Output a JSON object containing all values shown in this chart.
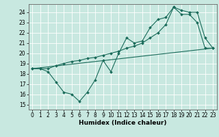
{
  "xlabel": "Humidex (Indice chaleur)",
  "background_color": "#c8e8e0",
  "grid_color": "#ffffff",
  "line_color": "#1a6b5a",
  "xlim": [
    -0.5,
    23.5
  ],
  "ylim": [
    14.5,
    24.8
  ],
  "xticks": [
    0,
    1,
    2,
    3,
    4,
    5,
    6,
    7,
    8,
    9,
    10,
    11,
    12,
    13,
    14,
    15,
    16,
    17,
    18,
    19,
    20,
    21,
    22,
    23
  ],
  "yticks": [
    15,
    16,
    17,
    18,
    19,
    20,
    21,
    22,
    23,
    24
  ],
  "line1_x": [
    0,
    1,
    2,
    3,
    4,
    5,
    6,
    7,
    8,
    9,
    10,
    11,
    12,
    13,
    14,
    15,
    16,
    17,
    18,
    19,
    20,
    21,
    22,
    23
  ],
  "line1_y": [
    18.5,
    18.5,
    18.2,
    17.2,
    16.2,
    16.0,
    15.3,
    16.2,
    17.4,
    19.3,
    18.2,
    20.0,
    21.5,
    21.0,
    21.2,
    22.5,
    23.3,
    23.5,
    24.5,
    23.8,
    23.8,
    23.0,
    20.5,
    20.5
  ],
  "line2_x": [
    0,
    1,
    2,
    3,
    4,
    5,
    6,
    7,
    8,
    9,
    10,
    11,
    12,
    13,
    14,
    15,
    16,
    17,
    18,
    19,
    20,
    21,
    22,
    23
  ],
  "line2_y": [
    18.5,
    18.5,
    18.5,
    18.8,
    19.0,
    19.2,
    19.3,
    19.5,
    19.6,
    19.8,
    20.0,
    20.2,
    20.5,
    20.7,
    21.0,
    21.5,
    22.0,
    22.8,
    24.5,
    24.2,
    24.0,
    24.0,
    21.5,
    20.5
  ],
  "line3_x": [
    0,
    23
  ],
  "line3_y": [
    18.5,
    20.5
  ],
  "tick_fontsize": 5.5,
  "xlabel_fontsize": 6.5,
  "marker_size": 2.0,
  "line_width": 0.8
}
